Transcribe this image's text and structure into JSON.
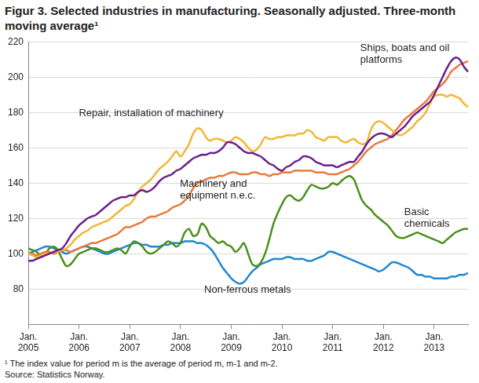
{
  "chart_data": {
    "type": "line",
    "title": "Figur 3. Selected industries in manufacturing. Seasonally adjusted. Three-month moving average¹",
    "notes": [
      "¹ The index value for period m is the average of period m, m-1 and m-2.",
      "Source: Statistics Norway."
    ],
    "categories": [
      "Jan. 2005",
      null,
      null,
      null,
      null,
      null,
      null,
      null,
      null,
      null,
      null,
      null,
      "Jan. 2006",
      null,
      null,
      null,
      null,
      null,
      null,
      null,
      null,
      null,
      null,
      null,
      "Jan. 2007",
      null,
      null,
      null,
      null,
      null,
      null,
      null,
      null,
      null,
      null,
      null,
      "Jan. 2008",
      null,
      null,
      null,
      null,
      null,
      null,
      null,
      null,
      null,
      null,
      null,
      "Jan. 2009",
      null,
      null,
      null,
      null,
      null,
      null,
      null,
      null,
      null,
      null,
      null,
      "Jan. 2010",
      null,
      null,
      null,
      null,
      null,
      null,
      null,
      null,
      null,
      null,
      null,
      "Jan. 2011",
      null,
      null,
      null,
      null,
      null,
      null,
      null,
      null,
      null,
      null,
      null,
      "Jan. 2012",
      null,
      null,
      null,
      null,
      null,
      null,
      null,
      null,
      null,
      null,
      null,
      "Jan. 2013",
      null,
      null,
      null,
      null,
      null,
      null,
      null,
      null
    ],
    "series": [
      {
        "name": "Ships, boats and oil platforms",
        "color": "#6a1f8e",
        "values": [
          96,
          96,
          97,
          98,
          99,
          100,
          101,
          102,
          103,
          106,
          110,
          113,
          116,
          118,
          120,
          121,
          122,
          124,
          126,
          128,
          130,
          131,
          132,
          132,
          133,
          133,
          135,
          136,
          135,
          136,
          138,
          141,
          143,
          144,
          145,
          147,
          148,
          150,
          152,
          154,
          155,
          156,
          156,
          157,
          157,
          158,
          160,
          163,
          163,
          162,
          160,
          158,
          157,
          157,
          156,
          155,
          153,
          151,
          150,
          148,
          147,
          149,
          150,
          152,
          153,
          155,
          155,
          154,
          152,
          151,
          150,
          150,
          150,
          149,
          150,
          151,
          152,
          152,
          155,
          158,
          162,
          165,
          167,
          168,
          168,
          167,
          166,
          168,
          170,
          172,
          175,
          178,
          180,
          182,
          184,
          186,
          190,
          195,
          200,
          205,
          209,
          211,
          210,
          206,
          203
        ]
      },
      {
        "name": "Repair, installation of machinery",
        "color": "#f2b632",
        "values": [
          100,
          99,
          98,
          99,
          100,
          100,
          101,
          101,
          102,
          103,
          105,
          108,
          110,
          112,
          113,
          115,
          116,
          117,
          118,
          119,
          121,
          123,
          125,
          127,
          128,
          131,
          135,
          138,
          140,
          142,
          145,
          148,
          150,
          152,
          155,
          158,
          155,
          158,
          162,
          168,
          171,
          170,
          166,
          164,
          165,
          165,
          164,
          163,
          164,
          166,
          165,
          163,
          160,
          158,
          159,
          162,
          166,
          165,
          165,
          166,
          166,
          167,
          167,
          167,
          168,
          168,
          170,
          169,
          166,
          165,
          164,
          166,
          166,
          166,
          164,
          163,
          164,
          165,
          163,
          162,
          163,
          170,
          174,
          175,
          174,
          172,
          170,
          168,
          167,
          168,
          170,
          172,
          175,
          177,
          180,
          185,
          189,
          190,
          190,
          189,
          190,
          189,
          188,
          185,
          183
        ]
      },
      {
        "name": "Machinery and equipment n.e.c.",
        "color": "#e8793a",
        "values": [
          100,
          100,
          99,
          100,
          101,
          101,
          100,
          101,
          102,
          102,
          101,
          102,
          103,
          104,
          105,
          106,
          106,
          107,
          108,
          109,
          110,
          111,
          113,
          115,
          115,
          116,
          117,
          118,
          120,
          121,
          121,
          122,
          123,
          124,
          126,
          127,
          128,
          130,
          133,
          137,
          140,
          141,
          142,
          143,
          143,
          144,
          144,
          145,
          146,
          146,
          145,
          145,
          145,
          146,
          146,
          145,
          145,
          144,
          145,
          145,
          146,
          146,
          146,
          147,
          147,
          147,
          147,
          147,
          146,
          146,
          146,
          145,
          145,
          145,
          146,
          147,
          148,
          150,
          152,
          155,
          158,
          160,
          162,
          163,
          164,
          165,
          167,
          170,
          173,
          176,
          178,
          180,
          182,
          184,
          186,
          189,
          192,
          194,
          196,
          199,
          203,
          205,
          207,
          208,
          209
        ]
      },
      {
        "name": "Basic chemicals",
        "color": "#4b8f1d",
        "values": [
          103,
          102,
          101,
          99,
          100,
          103,
          104,
          102,
          97,
          93,
          94,
          97,
          100,
          101,
          102,
          103,
          103,
          102,
          101,
          101,
          102,
          103,
          102,
          100,
          104,
          107,
          106,
          104,
          101,
          100,
          101,
          103,
          105,
          107,
          106,
          104,
          106,
          112,
          114,
          110,
          111,
          117,
          115,
          110,
          108,
          106,
          107,
          105,
          104,
          101,
          103,
          106,
          100,
          94,
          93,
          95,
          100,
          108,
          117,
          123,
          128,
          132,
          133,
          131,
          130,
          132,
          136,
          139,
          138,
          137,
          137,
          138,
          140,
          139,
          141,
          143,
          144,
          142,
          136,
          130,
          127,
          125,
          122,
          120,
          118,
          116,
          113,
          110,
          109,
          109,
          110,
          111,
          112,
          111,
          110,
          109,
          108,
          107,
          106,
          108,
          110,
          112,
          113,
          114,
          114
        ]
      },
      {
        "name": "Non-ferrous metals",
        "color": "#1f87d0",
        "values": [
          100,
          101,
          102,
          103,
          104,
          104,
          103,
          102,
          101,
          100,
          101,
          102,
          103,
          104,
          104,
          103,
          102,
          101,
          100,
          100,
          101,
          102,
          103,
          104,
          105,
          106,
          106,
          105,
          105,
          104,
          104,
          104,
          105,
          105,
          106,
          106,
          106,
          107,
          107,
          107,
          106,
          106,
          105,
          103,
          100,
          96,
          92,
          89,
          86,
          84,
          83,
          84,
          87,
          90,
          92,
          94,
          95,
          96,
          97,
          97,
          97,
          98,
          98,
          97,
          97,
          97,
          96,
          96,
          97,
          98,
          99,
          101,
          101,
          100,
          99,
          98,
          97,
          96,
          95,
          94,
          93,
          92,
          91,
          90,
          91,
          93,
          95,
          95,
          94,
          93,
          92,
          90,
          88,
          88,
          87,
          87,
          86,
          86,
          86,
          86,
          87,
          87,
          88,
          88,
          89
        ]
      }
    ],
    "ylim": [
      60,
      220
    ],
    "yticks": [
      80,
      100,
      120,
      140,
      160,
      180,
      200,
      220
    ],
    "grid": true
  }
}
